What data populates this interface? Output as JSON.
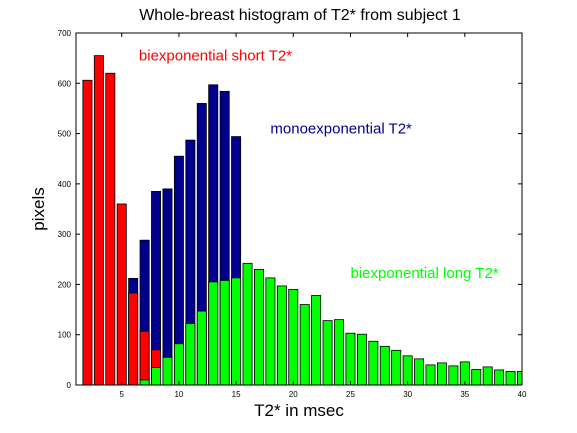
{
  "chart_data": {
    "type": "bar",
    "title": "Whole-breast histogram of T2* from subject 1",
    "xlabel": "T2* in msec",
    "ylabel": "pixels",
    "xlim": [
      1,
      40
    ],
    "ylim": [
      0,
      700
    ],
    "x_ticks": [
      5,
      10,
      15,
      20,
      25,
      30,
      35,
      40
    ],
    "y_ticks": [
      0,
      100,
      200,
      300,
      400,
      500,
      600,
      700
    ],
    "grid": false,
    "overlaid": true,
    "series": [
      {
        "name": "monoexponential T2*",
        "color": "#00008f",
        "x": [
          6,
          7,
          8,
          9,
          10,
          11,
          12,
          13,
          14,
          15
        ],
        "values": [
          212,
          288,
          385,
          390,
          455,
          487,
          560,
          597,
          584,
          494
        ]
      },
      {
        "name": "biexponential short T2*",
        "color": "#ff0000",
        "x": [
          2,
          3,
          4,
          5,
          6,
          7,
          8
        ],
        "values": [
          606,
          655,
          620,
          360,
          183,
          107,
          70
        ]
      },
      {
        "name": "biexponential long T2*",
        "color": "#00ff00",
        "x": [
          7,
          8,
          9,
          10,
          11,
          12,
          13,
          14,
          15,
          16,
          17,
          18,
          19,
          20,
          21,
          22,
          23,
          24,
          25,
          26,
          27,
          28,
          29,
          30,
          31,
          32,
          33,
          34,
          35,
          36,
          37,
          38,
          39,
          40
        ],
        "values": [
          10,
          35,
          55,
          82,
          122,
          147,
          205,
          208,
          213,
          242,
          230,
          213,
          197,
          190,
          160,
          178,
          128,
          130,
          103,
          101,
          87,
          77,
          69,
          58,
          52,
          40,
          44,
          38,
          46,
          31,
          36,
          30,
          27,
          27
        ]
      }
    ],
    "annotations": [
      {
        "text": "biexponential short T2*",
        "color": "#ff0000",
        "x": 6.5,
        "y": 645
      },
      {
        "text": "monoexponential T2*",
        "color": "#00008f",
        "x": 18,
        "y": 500
      },
      {
        "text": "biexponential long T2*",
        "color": "#00ff00",
        "x": 25,
        "y": 213
      }
    ]
  }
}
